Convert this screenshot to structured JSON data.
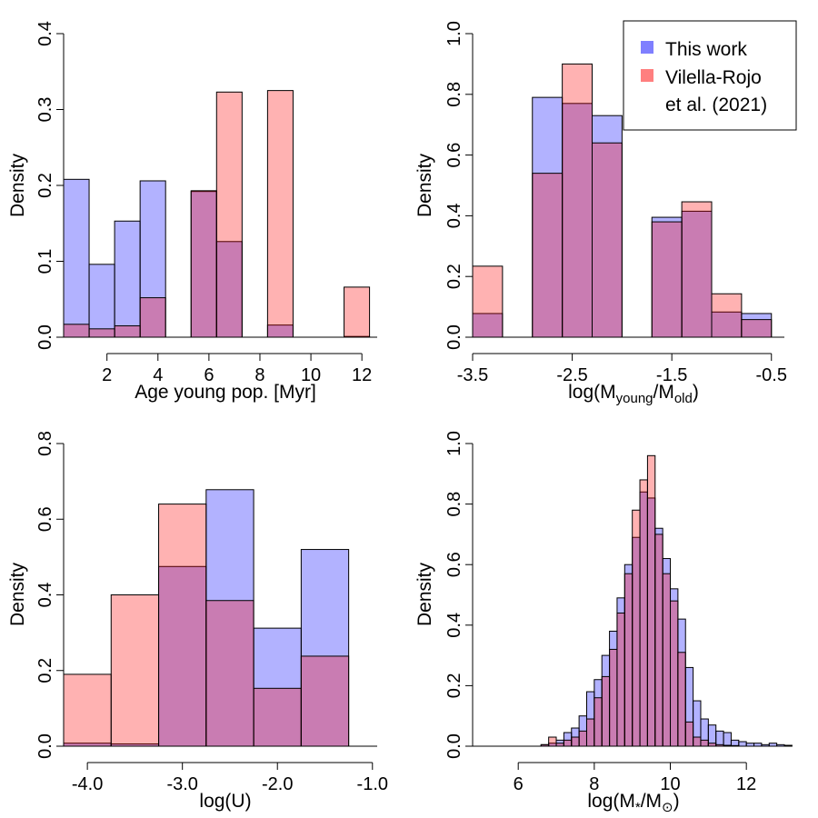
{
  "legend": {
    "items": [
      {
        "label_lines": [
          "This work"
        ],
        "color": "#7f7fff"
      },
      {
        "label_lines": [
          "Vilella-Rojo",
          "et al. (2021)"
        ],
        "color": "#ff7f7f"
      }
    ]
  },
  "colors": {
    "this_work_fill": "rgba(0,0,255,0.30)",
    "vilella_fill": "rgba(255,0,0,0.30)"
  },
  "chart_data": [
    {
      "type": "bar",
      "id": "age",
      "xlabel": "Age young pop. [Myr]",
      "ylabel": "Density",
      "xlim": [
        0.3,
        12.6
      ],
      "ylim": [
        0,
        0.4
      ],
      "xticks": [
        2,
        4,
        6,
        8,
        10,
        12
      ],
      "xtick_labels": [
        "2",
        "4",
        "6",
        "8",
        "10",
        "12"
      ],
      "yticks": [
        0,
        0.1,
        0.2,
        0.3,
        0.4
      ],
      "ytick_labels": [
        "0.0",
        "0.1",
        "0.2",
        "0.3",
        "0.4"
      ],
      "series": [
        {
          "name": "This work",
          "bins": [
            [
              0.3,
              1.3,
              0.208
            ],
            [
              1.3,
              2.3,
              0.096
            ],
            [
              2.3,
              3.3,
              0.153
            ],
            [
              3.3,
              4.3,
              0.206
            ],
            [
              5.3,
              6.3,
              0.192
            ],
            [
              6.3,
              7.3,
              0.126
            ],
            [
              8.3,
              9.3,
              0.016
            ],
            [
              11.3,
              12.3,
              0.001
            ]
          ]
        },
        {
          "name": "Vilella-Rojo et al. (2021)",
          "bins": [
            [
              0.3,
              1.3,
              0.017
            ],
            [
              1.3,
              2.3,
              0.011
            ],
            [
              2.3,
              3.3,
              0.015
            ],
            [
              3.3,
              4.3,
              0.052
            ],
            [
              5.3,
              6.3,
              0.193
            ],
            [
              6.3,
              7.3,
              0.323
            ],
            [
              8.3,
              9.3,
              0.325
            ],
            [
              11.3,
              12.3,
              0.066
            ]
          ]
        }
      ]
    },
    {
      "type": "bar",
      "id": "mass-ratio",
      "xlabel_main": "log(M",
      "xlabel_sub1": "young",
      "xlabel_mid": "/M",
      "xlabel_sub2": "old",
      "xlabel_end": ")",
      "ylabel": "Density",
      "xlim": [
        -3.5,
        -0.37
      ],
      "ylim": [
        0,
        1.0
      ],
      "xticks": [
        -3.5,
        -2.5,
        -1.5,
        -0.5
      ],
      "xtick_labels": [
        "-3.5",
        "-2.5",
        "-1.5",
        "-0.5"
      ],
      "yticks": [
        0,
        0.2,
        0.4,
        0.6,
        0.8,
        1.0
      ],
      "ytick_labels": [
        "0.0",
        "0.2",
        "0.4",
        "0.6",
        "0.8",
        "1.0"
      ],
      "series": [
        {
          "name": "This work",
          "bins": [
            [
              -3.5,
              -3.2,
              0.078
            ],
            [
              -2.9,
              -2.6,
              0.79
            ],
            [
              -2.6,
              -2.3,
              0.77
            ],
            [
              -2.3,
              -2.0,
              0.73
            ],
            [
              -1.7,
              -1.4,
              0.395
            ],
            [
              -1.4,
              -1.1,
              0.415
            ],
            [
              -1.1,
              -0.8,
              0.083
            ],
            [
              -0.8,
              -0.5,
              0.078
            ]
          ]
        },
        {
          "name": "Vilella-Rojo et al. (2021)",
          "bins": [
            [
              -3.5,
              -3.2,
              0.234
            ],
            [
              -2.9,
              -2.6,
              0.54
            ],
            [
              -2.6,
              -2.3,
              0.9
            ],
            [
              -2.3,
              -2.0,
              0.64
            ],
            [
              -1.7,
              -1.4,
              0.38
            ],
            [
              -1.4,
              -1.1,
              0.446
            ],
            [
              -1.1,
              -0.8,
              0.143
            ],
            [
              -0.8,
              -0.5,
              0.058
            ]
          ]
        }
      ]
    },
    {
      "type": "bar",
      "id": "logU",
      "xlabel": "log(U)",
      "ylabel": "Density",
      "xlim": [
        -4.25,
        -0.95
      ],
      "ylim": [
        0,
        0.8
      ],
      "xticks": [
        -4.0,
        -3.0,
        -2.0,
        -1.0
      ],
      "xtick_labels": [
        "-4.0",
        "-3.0",
        "-2.0",
        "-1.0"
      ],
      "yticks": [
        0,
        0.2,
        0.4,
        0.6,
        0.8
      ],
      "ytick_labels": [
        "0.0",
        "0.2",
        "0.4",
        "0.6",
        "0.8"
      ],
      "series": [
        {
          "name": "This work",
          "bins": [
            [
              -4.25,
              -3.75,
              0.008
            ],
            [
              -3.75,
              -3.25,
              0.006
            ],
            [
              -3.25,
              -2.75,
              0.475
            ],
            [
              -2.75,
              -2.25,
              0.678
            ],
            [
              -2.25,
              -1.75,
              0.312
            ],
            [
              -1.75,
              -1.25,
              0.52
            ]
          ]
        },
        {
          "name": "Vilella-Rojo et al. (2021)",
          "bins": [
            [
              -4.25,
              -3.75,
              0.19
            ],
            [
              -3.75,
              -3.25,
              0.4
            ],
            [
              -3.25,
              -2.75,
              0.64
            ],
            [
              -2.75,
              -2.25,
              0.385
            ],
            [
              -2.25,
              -1.75,
              0.153
            ],
            [
              -1.75,
              -1.25,
              0.238
            ]
          ]
        }
      ]
    },
    {
      "type": "bar",
      "id": "stellar-mass",
      "xlabel_main": "log(M",
      "xlabel_sub1": "*",
      "xlabel_mid": "/M",
      "xlabel_sub2": "⊙",
      "xlabel_end": ")",
      "ylabel": "Density",
      "xlim": [
        4.8,
        13.0
      ],
      "ylim": [
        0,
        1.0
      ],
      "xticks": [
        6,
        8,
        10,
        12
      ],
      "xtick_labels": [
        "6",
        "8",
        "10",
        "12"
      ],
      "yticks": [
        0,
        0.2,
        0.4,
        0.6,
        0.8,
        1.0
      ],
      "ytick_labels": [
        "0.0",
        "0.2",
        "0.4",
        "0.6",
        "0.8",
        "1.0"
      ],
      "bin_start": 4.8,
      "bin_width": 0.2,
      "series": [
        {
          "name": "This work",
          "values": [
            0,
            0,
            0,
            0,
            0,
            0,
            0,
            0,
            0,
            0.005,
            0.01,
            0.02,
            0.045,
            0.06,
            0.1,
            0.18,
            0.22,
            0.3,
            0.38,
            0.49,
            0.6,
            0.69,
            0.84,
            0.82,
            0.72,
            0.62,
            0.52,
            0.42,
            0.26,
            0.15,
            0.09,
            0.07,
            0.05,
            0.045,
            0.02,
            0.015,
            0.01,
            0.01,
            0.005,
            0.01,
            0.005,
            0.003
          ]
        },
        {
          "name": "Vilella-Rojo et al. (2021)",
          "values": [
            0,
            0,
            0,
            0,
            0,
            0,
            0,
            0,
            0,
            0.005,
            0.03,
            0.01,
            0.02,
            0.03,
            0.05,
            0.09,
            0.16,
            0.23,
            0.32,
            0.44,
            0.57,
            0.78,
            0.88,
            0.96,
            0.7,
            0.57,
            0.48,
            0.31,
            0.08,
            0.03,
            0.02,
            0.01,
            0.005,
            0.003,
            0.002,
            0,
            0,
            0,
            0,
            0,
            0,
            0
          ]
        }
      ]
    }
  ]
}
